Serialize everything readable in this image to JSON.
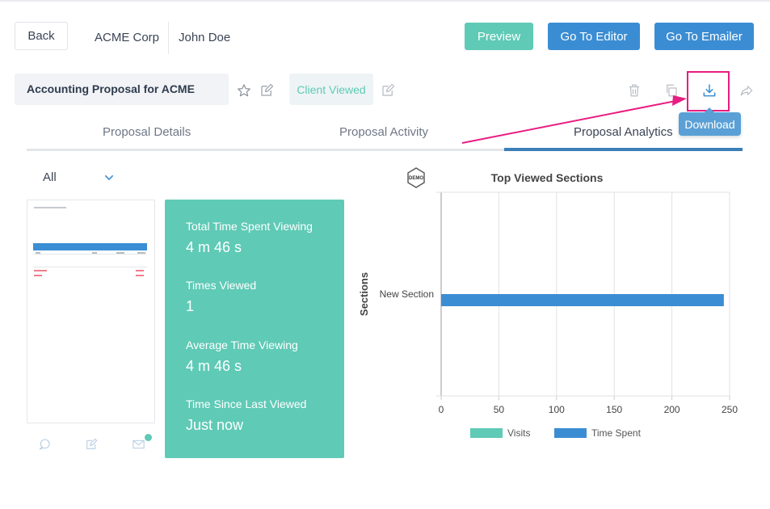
{
  "header": {
    "back_label": "Back",
    "company": "ACME Corp",
    "contact": "John Doe",
    "preview_label": "Preview",
    "go_to_editor_label": "Go To Editor",
    "go_to_emailer_label": "Go To Emailer"
  },
  "proposal": {
    "title": "Accounting Proposal for ACME",
    "status": "Client Viewed",
    "download_tooltip": "Download"
  },
  "tabs": [
    {
      "label": "Proposal Details"
    },
    {
      "label": "Proposal Activity"
    },
    {
      "label": "Proposal Analytics",
      "active": true
    }
  ],
  "filter": {
    "selected": "All"
  },
  "stats": [
    {
      "label": "Total Time Spent Viewing",
      "value": "4 m 46 s"
    },
    {
      "label": "Times Viewed",
      "value": "1"
    },
    {
      "label": "Average Time Viewing",
      "value": "4 m 46 s"
    },
    {
      "label": "Time Since Last Viewed",
      "value": "Just now"
    }
  ],
  "demo_badge": "DEMO",
  "colors": {
    "accent_teal": "#5fcab6",
    "accent_blue": "#3b8dd3",
    "highlight_pink": "#e81d82"
  },
  "chart_data": {
    "type": "bar",
    "orientation": "horizontal",
    "title": "Top Viewed Sections",
    "ylabel": "Sections",
    "xlabel": "",
    "categories": [
      "New Section"
    ],
    "series": [
      {
        "name": "Visits",
        "values": [
          0
        ],
        "color": "#5fcab6"
      },
      {
        "name": "Time Spent",
        "values": [
          245
        ],
        "color": "#3b8dd3"
      }
    ],
    "xlim": [
      0,
      250
    ],
    "xticks": [
      "0",
      "50",
      "100",
      "150",
      "200",
      "250"
    ],
    "grid": true,
    "legend": "bottom"
  }
}
